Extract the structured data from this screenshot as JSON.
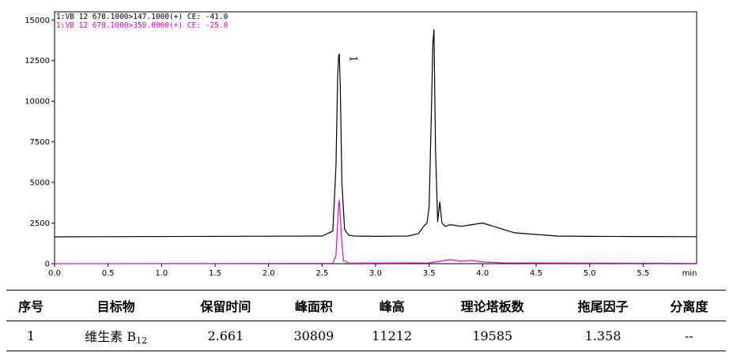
{
  "chart_data": {
    "type": "line",
    "title": "",
    "xlabel": "",
    "ylabel": "",
    "x_unit": "min",
    "xlim": [
      0.0,
      6.0
    ],
    "ylim": [
      0,
      15500
    ],
    "x_ticks": [
      0.0,
      0.5,
      1.0,
      1.5,
      2.0,
      2.5,
      3.0,
      3.5,
      4.0,
      4.5,
      5.0,
      5.5
    ],
    "x_tick_labels": [
      "0.0",
      "0.5",
      "1.0",
      "1.5",
      "2.0",
      "2.5",
      "3.0",
      "3.5",
      "4.0",
      "4.5",
      "5.0",
      "5.5"
    ],
    "y_ticks": [
      0,
      2500,
      5000,
      7500,
      10000,
      12500,
      15000
    ],
    "y_tick_labels": [
      "0",
      "2500",
      "5000",
      "7500",
      "10000",
      "12500",
      "15000"
    ],
    "grid": false,
    "legend_placement": "top-left",
    "peak_label": "1",
    "peak_label_x": 2.661,
    "series": [
      {
        "name": "1:VB 12 678.1000>147.1000(+) CE: -41.0",
        "color": "#000000",
        "x": [
          0.0,
          2.5,
          2.6,
          2.63,
          2.645,
          2.655,
          2.661,
          2.67,
          2.685,
          2.71,
          2.75,
          2.8,
          3.0,
          3.3,
          3.4,
          3.45,
          3.48,
          3.5,
          3.52,
          3.535,
          3.545,
          3.56,
          3.58,
          3.6,
          3.62,
          3.65,
          3.7,
          3.8,
          3.9,
          4.0,
          4.1,
          4.3,
          4.5,
          4.7,
          5.0,
          5.5,
          6.0
        ],
        "y": [
          1650,
          1700,
          2000,
          6000,
          11500,
          12800,
          12900,
          11000,
          5000,
          2100,
          1750,
          1700,
          1680,
          1700,
          1850,
          2300,
          2500,
          3500,
          9000,
          13500,
          14400,
          7000,
          2600,
          3800,
          2500,
          2300,
          2400,
          2300,
          2400,
          2500,
          2300,
          1900,
          1800,
          1700,
          1680,
          1670,
          1660
        ]
      },
      {
        "name": "1:VB 12 678.1000>359.0000(+) CE: -25.0",
        "color": "#e000e0",
        "x": [
          0.0,
          2.6,
          2.63,
          2.645,
          2.655,
          2.661,
          2.67,
          2.685,
          2.7,
          2.75,
          3.5,
          3.7,
          3.8,
          3.9,
          4.0,
          4.2,
          6.0
        ],
        "y": [
          0,
          20,
          500,
          2500,
          3600,
          3900,
          3000,
          1200,
          200,
          30,
          50,
          250,
          150,
          200,
          100,
          50,
          20
        ]
      }
    ]
  },
  "table": {
    "headers": [
      "序号",
      "目标物",
      "保留时间",
      "峰面积",
      "峰高",
      "理论塔板数",
      "拖尾因子",
      "分离度"
    ],
    "row": {
      "index": "1",
      "compound": "维生素 B",
      "compound_sub": "12",
      "retention_time": "2.661",
      "peak_area": "30809",
      "peak_height": "11212",
      "plates": "19585",
      "tailing": "1.358",
      "resolution": "--"
    }
  }
}
